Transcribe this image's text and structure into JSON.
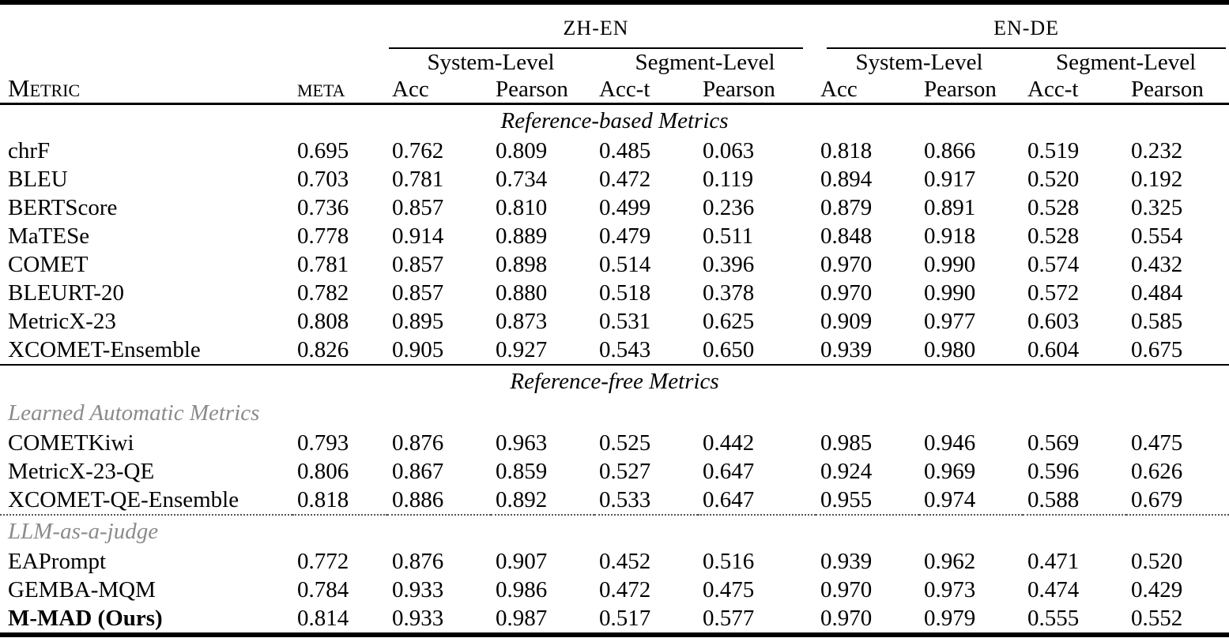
{
  "colors": {
    "text": "#000000",
    "subsection_muted": "#8b8b8b",
    "rule": "#000000",
    "background": "#ffffff"
  },
  "table": {
    "groups": [
      {
        "label": "ZH-EN"
      },
      {
        "label": "EN-DE"
      }
    ],
    "header": {
      "metric_label": "Metric",
      "meta_label": "meta",
      "levels": [
        "System-Level",
        "Segment-Level",
        "System-Level",
        "Segment-Level"
      ],
      "columns": [
        "Acc",
        "Pearson",
        "Acc-t",
        "Pearson",
        "Acc",
        "Pearson",
        "Acc-t",
        "Pearson"
      ]
    },
    "body": [
      {
        "type": "section-title",
        "text": "Reference-based Metrics"
      },
      {
        "type": "row",
        "name": "chrF",
        "values": [
          "0.695",
          "0.762",
          "0.809",
          "0.485",
          "0.063",
          "0.818",
          "0.866",
          "0.519",
          "0.232"
        ]
      },
      {
        "type": "row",
        "name": "BLEU",
        "values": [
          "0.703",
          "0.781",
          "0.734",
          "0.472",
          "0.119",
          "0.894",
          "0.917",
          "0.520",
          "0.192"
        ]
      },
      {
        "type": "row",
        "name": "BERTScore",
        "values": [
          "0.736",
          "0.857",
          "0.810",
          "0.499",
          "0.236",
          "0.879",
          "0.891",
          "0.528",
          "0.325"
        ]
      },
      {
        "type": "row",
        "name": "MaTESe",
        "values": [
          "0.778",
          "0.914",
          "0.889",
          "0.479",
          "0.511",
          "0.848",
          "0.918",
          "0.528",
          "0.554"
        ]
      },
      {
        "type": "row",
        "name": "COMET",
        "values": [
          "0.781",
          "0.857",
          "0.898",
          "0.514",
          "0.396",
          "0.970",
          "0.990",
          "0.574",
          "0.432"
        ]
      },
      {
        "type": "row",
        "name": "BLEURT-20",
        "values": [
          "0.782",
          "0.857",
          "0.880",
          "0.518",
          "0.378",
          "0.970",
          "0.990",
          "0.572",
          "0.484"
        ]
      },
      {
        "type": "row",
        "name": "MetricX-23",
        "values": [
          "0.808",
          "0.895",
          "0.873",
          "0.531",
          "0.625",
          "0.909",
          "0.977",
          "0.603",
          "0.585"
        ]
      },
      {
        "type": "row",
        "name": "XCOMET-Ensemble",
        "values": [
          "0.826",
          "0.905",
          "0.927",
          "0.543",
          "0.650",
          "0.939",
          "0.980",
          "0.604",
          "0.675"
        ]
      },
      {
        "type": "section-title",
        "text": "Reference-free Metrics",
        "rule_above": "solid"
      },
      {
        "type": "subsection",
        "text": "Learned Automatic Metrics"
      },
      {
        "type": "row",
        "name": "COMETKiwi",
        "values": [
          "0.793",
          "0.876",
          "0.963",
          "0.525",
          "0.442",
          "0.985",
          "0.946",
          "0.569",
          "0.475"
        ]
      },
      {
        "type": "row",
        "name": "MetricX-23-QE",
        "values": [
          "0.806",
          "0.867",
          "0.859",
          "0.527",
          "0.647",
          "0.924",
          "0.969",
          "0.596",
          "0.626"
        ]
      },
      {
        "type": "row",
        "name": "XCOMET-QE-Ensemble",
        "values": [
          "0.818",
          "0.886",
          "0.892",
          "0.533",
          "0.647",
          "0.955",
          "0.974",
          "0.588",
          "0.679"
        ]
      },
      {
        "type": "subsection",
        "text": "LLM-as-a-judge",
        "rule_above": "dotted"
      },
      {
        "type": "row",
        "name": "EAPrompt",
        "values": [
          "0.772",
          "0.876",
          "0.907",
          "0.452",
          "0.516",
          "0.939",
          "0.962",
          "0.471",
          "0.520"
        ]
      },
      {
        "type": "row",
        "name": "GEMBA-MQM",
        "values": [
          "0.784",
          "0.933",
          "0.986",
          "0.472",
          "0.475",
          "0.970",
          "0.973",
          "0.474",
          "0.429"
        ]
      },
      {
        "type": "row",
        "name": "M-MAD (Ours)",
        "bold": true,
        "values": [
          "0.814",
          "0.933",
          "0.987",
          "0.517",
          "0.577",
          "0.970",
          "0.979",
          "0.555",
          "0.552"
        ]
      }
    ]
  }
}
